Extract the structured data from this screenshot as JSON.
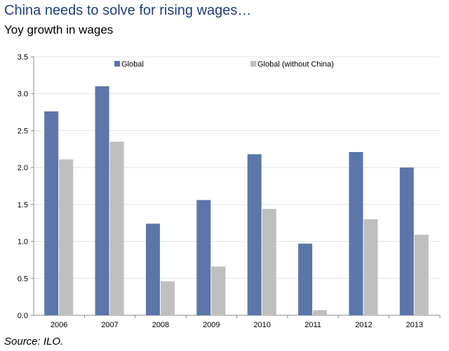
{
  "title": "China needs to solve for rising wages…",
  "subtitle": "Yoy growth in wages",
  "source": "Source:  ILO.",
  "chart_data": {
    "type": "bar",
    "categories": [
      "2006",
      "2007",
      "2008",
      "2009",
      "2010",
      "2011",
      "2012",
      "2013"
    ],
    "series": [
      {
        "name": "Global",
        "color": "#5b76a8",
        "values": [
          2.76,
          3.1,
          1.24,
          1.56,
          2.18,
          0.97,
          2.21,
          2.0
        ]
      },
      {
        "name": "Global (without China)",
        "color": "#bfbfbf",
        "values": [
          2.11,
          2.35,
          0.46,
          0.66,
          1.44,
          0.07,
          1.3,
          1.09
        ]
      }
    ],
    "ylim": [
      0,
      3.5
    ],
    "yticks": [
      "0.0",
      "0.5",
      "1.0",
      "1.5",
      "2.0",
      "2.5",
      "3.0",
      "3.5"
    ],
    "grid": true,
    "legend": "top"
  }
}
